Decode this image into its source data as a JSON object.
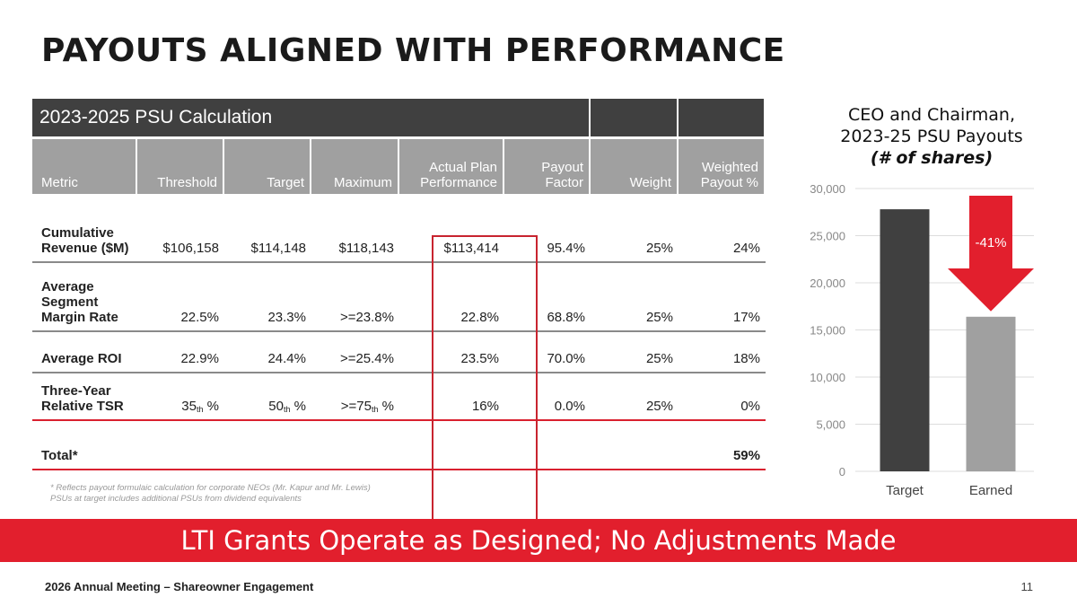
{
  "slide_title": "PAYOUTS ALIGNED WITH PERFORMANCE",
  "table": {
    "title": "2023-2025 PSU Calculation",
    "headers": [
      "Metric",
      "Threshold",
      "Target",
      "Maximum",
      "Actual Plan Performance",
      "Payout Factor",
      "Weight",
      "Weighted Payout %"
    ],
    "rows": [
      [
        "Cumulative Revenue ($M)",
        "$106,158",
        "$114,148",
        "$118,143",
        "$113,414",
        "95.4%",
        "25%",
        "24%"
      ],
      [
        "Average Segment Margin Rate",
        "22.5%",
        "23.3%",
        ">=23.8%",
        "22.8%",
        "68.8%",
        "25%",
        "17%"
      ],
      [
        "Average ROI",
        "22.9%",
        "24.4%",
        ">=25.4%",
        "23.5%",
        "70.0%",
        "25%",
        "18%"
      ]
    ],
    "tsr_row": {
      "metric": "Three-Year Relative TSR",
      "threshold": {
        "pre": "35",
        "sup": "th",
        "post": " %"
      },
      "target": {
        "pre": "50",
        "sup": "th",
        "post": " %"
      },
      "maximum": {
        "pre": ">=75",
        "sup": "th",
        "post": " %"
      },
      "actual": "16%",
      "payout_factor": "0.0%",
      "weight": "25%",
      "weighted": "0%"
    },
    "total": {
      "label": "Total*",
      "value": "59%"
    },
    "footnotes": [
      "* Reflects payout formulaic calculation for corporate NEOs (Mr. Kapur and Mr. Lewis)",
      "PSUs at target includes additional PSUs from dividend equivalents"
    ]
  },
  "banner": "LTI Grants Operate as Designed; No Adjustments Made",
  "footer": {
    "meeting": "2026 Annual Meeting – Shareowner Engagement",
    "page": "11"
  },
  "colors": {
    "accent": "#e21f2d",
    "dark": "#404040",
    "grey": "#a0a0a0"
  },
  "chart_data": {
    "type": "bar",
    "title_lines": [
      "CEO and Chairman,",
      "2023-25 PSU Payouts",
      "(# of shares)"
    ],
    "categories": [
      "Target",
      "Earned"
    ],
    "values": [
      27800,
      16400
    ],
    "bar_colors": [
      "#404040",
      "#a0a0a0"
    ],
    "ylim": [
      0,
      30000
    ],
    "yticks": [
      "0",
      "5,000",
      "10,000",
      "15,000",
      "20,000",
      "25,000",
      "30,000"
    ],
    "grid": true,
    "annotation": "-41%"
  }
}
